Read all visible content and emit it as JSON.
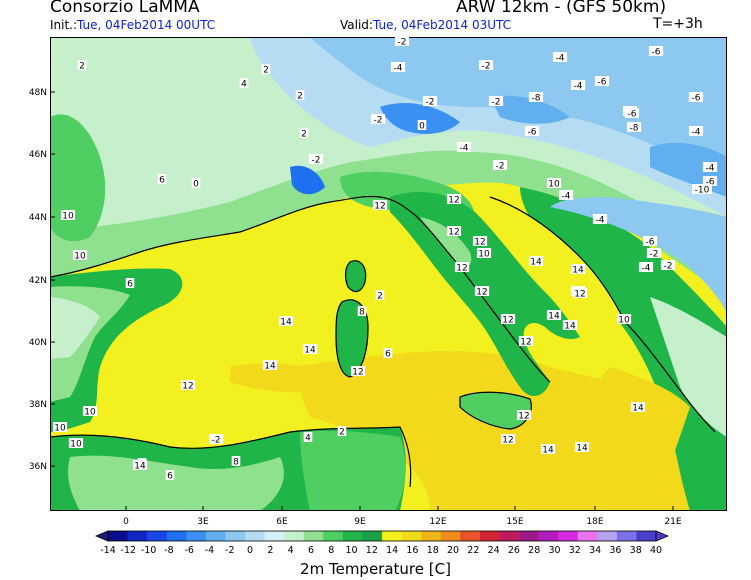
{
  "header": {
    "org": "Consorzio LaMMA",
    "model": "ARW 12km - (GFS 50km)",
    "init_label": "Init.:",
    "init_value": "Tue, 04Feb2014 00UTC",
    "valid_label": "Valid:",
    "valid_value": "Tue, 04Feb2014 03UTC",
    "step": "T=+3h"
  },
  "map": {
    "lat_labels": [
      "48N",
      "46N",
      "44N",
      "42N",
      "40N",
      "38N",
      "36N"
    ],
    "lon_labels": [
      "0",
      "3E",
      "6E",
      "9E",
      "12E",
      "15E",
      "18E",
      "21E"
    ]
  },
  "colorbar": {
    "title": "2m Temperature [C]",
    "levels": [
      "-14",
      "-12",
      "-10",
      "-8",
      "-6",
      "-4",
      "-2",
      "0",
      "2",
      "4",
      "6",
      "8",
      "10",
      "12",
      "14",
      "16",
      "18",
      "20",
      "22",
      "24",
      "26",
      "28",
      "30",
      "32",
      "34",
      "36",
      "38",
      "40"
    ],
    "colors": [
      "#0b0b8c",
      "#1026c4",
      "#1747e6",
      "#1e70f0",
      "#3a91f2",
      "#62afef",
      "#8dc8f1",
      "#b6dcf3",
      "#d7eef7",
      "#c6f0cc",
      "#8fe08f",
      "#4fce62",
      "#1fb548",
      "#1aa14a",
      "#f2f01e",
      "#f3d91b",
      "#f1b41a",
      "#ee8c1e",
      "#e9542a",
      "#d32436",
      "#b81c5e",
      "#9e1a86",
      "#b21ebb",
      "#d62ae0",
      "#e973f0",
      "#b6a1f4",
      "#7d70e6",
      "#4a3fcc"
    ],
    "triangle_low": "#1e1c7a",
    "triangle_high": "#4a3fcc"
  },
  "contour_labels": [
    {
      "t": "-2"
    },
    {
      "t": "-4"
    },
    {
      "t": "-2"
    },
    {
      "t": "-4"
    },
    {
      "t": "-6"
    },
    {
      "t": "-6"
    },
    {
      "t": "-4"
    },
    {
      "t": "-6"
    },
    {
      "t": "2"
    },
    {
      "t": "2"
    },
    {
      "t": "4"
    },
    {
      "t": "2"
    },
    {
      "t": "-2"
    },
    {
      "t": "-2"
    },
    {
      "t": "0"
    },
    {
      "t": "-2"
    },
    {
      "t": "-8"
    },
    {
      "t": "-6"
    },
    {
      "t": "-6"
    },
    {
      "t": "-4"
    },
    {
      "t": "-6"
    },
    {
      "t": "2"
    },
    {
      "t": "0"
    },
    {
      "t": "-2"
    },
    {
      "t": "-4"
    },
    {
      "t": "-8"
    },
    {
      "t": "-4"
    },
    {
      "t": "-6"
    },
    {
      "t": "-10"
    },
    {
      "t": "-4"
    },
    {
      "t": "-4"
    },
    {
      "t": "-2"
    },
    {
      "t": "-4"
    },
    {
      "t": "-2"
    },
    {
      "t": "-2"
    },
    {
      "t": "12"
    },
    {
      "t": "10"
    },
    {
      "t": "12"
    },
    {
      "t": "12"
    },
    {
      "t": "12"
    },
    {
      "t": "12"
    },
    {
      "t": "10"
    },
    {
      "t": "14"
    },
    {
      "t": "12"
    },
    {
      "t": "12"
    },
    {
      "t": "12"
    },
    {
      "t": "14"
    },
    {
      "t": "14"
    },
    {
      "t": "12"
    },
    {
      "t": "14"
    },
    {
      "t": "12"
    },
    {
      "t": "10"
    },
    {
      "t": "14"
    },
    {
      "t": "12"
    },
    {
      "t": "14"
    },
    {
      "t": "10"
    },
    {
      "t": "8"
    },
    {
      "t": "2"
    },
    {
      "t": "4"
    },
    {
      "t": "-2"
    },
    {
      "t": "-6"
    },
    {
      "t": "12"
    },
    {
      "t": "10"
    },
    {
      "t": "14"
    },
    {
      "t": "12"
    },
    {
      "t": "14"
    },
    {
      "t": "12"
    },
    {
      "t": "14"
    },
    {
      "t": "14"
    },
    {
      "t": "6"
    },
    {
      "t": "8"
    },
    {
      "t": "10"
    },
    {
      "t": "2"
    },
    {
      "t": "8"
    },
    {
      "t": "6"
    },
    {
      "t": "14"
    },
    {
      "t": "6"
    },
    {
      "t": "10"
    },
    {
      "t": "10"
    },
    {
      "t": "6"
    }
  ]
}
